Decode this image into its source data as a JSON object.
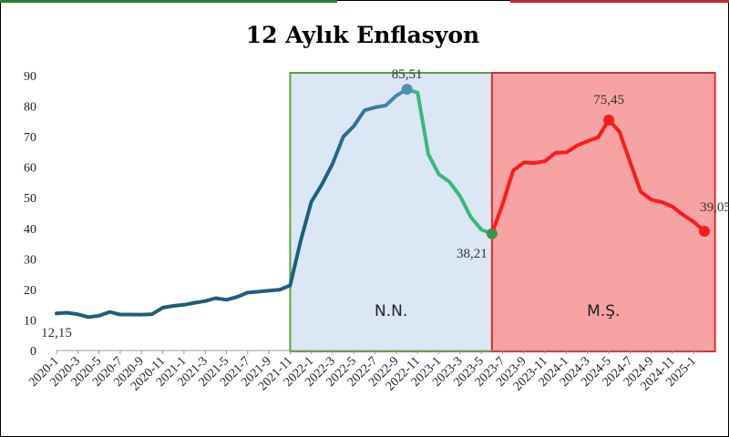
{
  "chart_data": {
    "type": "line",
    "title": "12 Aylık Enflasyon",
    "xlabel": "",
    "ylabel": "",
    "ylim": [
      0,
      90
    ],
    "yticks": [
      0,
      10,
      20,
      30,
      40,
      50,
      60,
      70,
      80,
      90
    ],
    "grid": false,
    "x_tick_labels": [
      "2020-1",
      "2020-3",
      "2020-5",
      "2020-7",
      "2020-9",
      "2020-11",
      "2021-1",
      "2021-3",
      "2021-5",
      "2021-7",
      "2021-9",
      "2021-11",
      "2022-1",
      "2022-3",
      "2022-5",
      "2022-7",
      "2022-9",
      "2022-11",
      "2023-1",
      "2023-3",
      "2023-5",
      "2023-7",
      "2023-9",
      "2023-11",
      "2024-1",
      "2024-3",
      "2024-5",
      "2024-7",
      "2024-9",
      "2024-11",
      "2025-1"
    ],
    "regions": [
      {
        "label": "N.N.",
        "start": "2021-11",
        "end": "2023-6",
        "fill": "#dbe7f5",
        "stroke": "#5aa23c"
      },
      {
        "label": "M.Ş.",
        "start": "2023-6",
        "end": "2025-3",
        "fill": "#f7a3a3",
        "stroke": "#d32f2f"
      }
    ],
    "series": [
      {
        "color": "#1b5f7e",
        "gradient_to": "#4d8fb0",
        "points": [
          [
            "2020-1",
            12.15
          ],
          [
            "2020-2",
            12.37
          ],
          [
            "2020-3",
            11.86
          ],
          [
            "2020-4",
            10.94
          ],
          [
            "2020-5",
            11.39
          ],
          [
            "2020-6",
            12.62
          ],
          [
            "2020-7",
            11.76
          ],
          [
            "2020-8",
            11.77
          ],
          [
            "2020-9",
            11.75
          ],
          [
            "2020-10",
            11.89
          ],
          [
            "2020-11",
            14.03
          ],
          [
            "2020-12",
            14.6
          ],
          [
            "2021-1",
            14.97
          ],
          [
            "2021-2",
            15.61
          ],
          [
            "2021-3",
            16.19
          ],
          [
            "2021-4",
            17.14
          ],
          [
            "2021-5",
            16.59
          ],
          [
            "2021-6",
            17.53
          ],
          [
            "2021-7",
            18.95
          ],
          [
            "2021-8",
            19.25
          ],
          [
            "2021-9",
            19.58
          ],
          [
            "2021-10",
            19.89
          ],
          [
            "2021-11",
            21.31
          ],
          [
            "2021-12",
            36.08
          ],
          [
            "2022-1",
            48.69
          ],
          [
            "2022-2",
            54.44
          ],
          [
            "2022-3",
            61.14
          ],
          [
            "2022-4",
            69.97
          ],
          [
            "2022-5",
            73.5
          ],
          [
            "2022-6",
            78.62
          ],
          [
            "2022-7",
            79.6
          ],
          [
            "2022-8",
            80.21
          ],
          [
            "2022-9",
            83.45
          ],
          [
            "2022-10",
            85.51
          ]
        ]
      },
      {
        "color": "#3cb878",
        "points": [
          [
            "2022-10",
            85.51
          ],
          [
            "2022-11",
            84.39
          ],
          [
            "2022-12",
            64.27
          ],
          [
            "2023-1",
            57.68
          ],
          [
            "2023-2",
            55.18
          ],
          [
            "2023-3",
            50.51
          ],
          [
            "2023-4",
            43.68
          ],
          [
            "2023-5",
            39.59
          ],
          [
            "2023-6",
            38.21
          ]
        ]
      },
      {
        "color": "#ff1a1a",
        "points": [
          [
            "2023-6",
            38.21
          ],
          [
            "2023-7",
            47.83
          ],
          [
            "2023-8",
            58.94
          ],
          [
            "2023-9",
            61.53
          ],
          [
            "2023-10",
            61.36
          ],
          [
            "2023-11",
            61.98
          ],
          [
            "2023-12",
            64.77
          ],
          [
            "2024-1",
            64.86
          ],
          [
            "2024-2",
            67.07
          ],
          [
            "2024-3",
            68.5
          ],
          [
            "2024-4",
            69.8
          ],
          [
            "2024-5",
            75.45
          ],
          [
            "2024-6",
            71.6
          ],
          [
            "2024-7",
            61.78
          ],
          [
            "2024-8",
            51.97
          ],
          [
            "2024-9",
            49.38
          ],
          [
            "2024-10",
            48.58
          ],
          [
            "2024-11",
            47.09
          ],
          [
            "2024-12",
            44.38
          ],
          [
            "2025-1",
            42.12
          ],
          [
            "2025-2",
            39.05
          ]
        ]
      }
    ],
    "annotations": [
      {
        "x": "2020-1",
        "y": 12.15,
        "text": "12,15",
        "dot": false
      },
      {
        "x": "2022-10",
        "y": 85.51,
        "text": "85,51",
        "dot": true,
        "color": "#4d8fb0"
      },
      {
        "x": "2023-6",
        "y": 38.21,
        "text": "38,21",
        "dot": true,
        "color": "#3f8f4f"
      },
      {
        "x": "2024-5",
        "y": 75.45,
        "text": "75,45",
        "dot": true,
        "color": "#ff1a1a"
      },
      {
        "x": "2025-2",
        "y": 39.05,
        "text": "39,05",
        "dot": true,
        "color": "#ff1a1a"
      }
    ]
  }
}
